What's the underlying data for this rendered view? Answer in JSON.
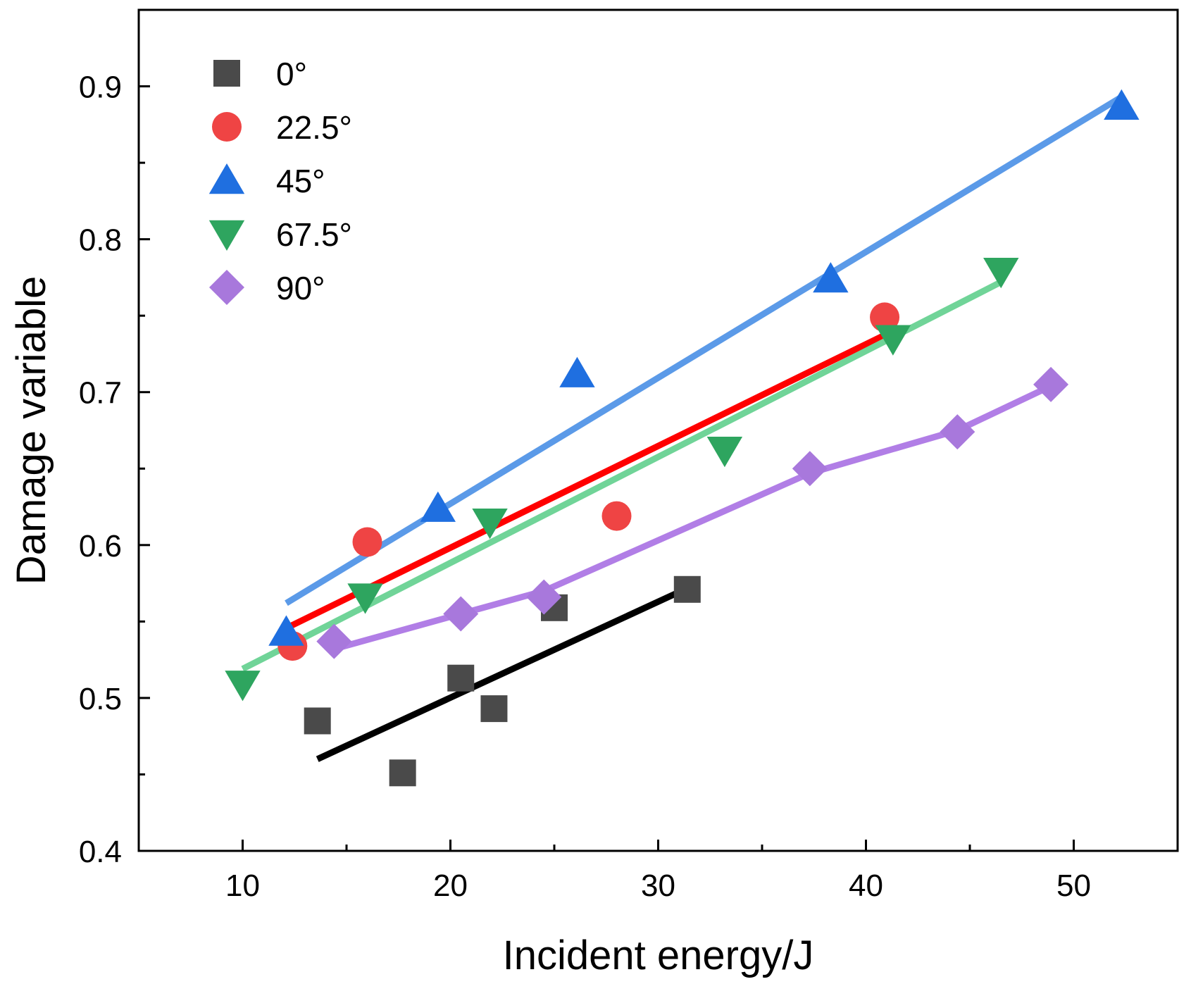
{
  "chart_data": {
    "type": "scatter",
    "title": "",
    "xlabel": "Incident energy/J",
    "ylabel": "Damage variable",
    "xlim": [
      5,
      55
    ],
    "ylim": [
      0.4,
      0.95
    ],
    "xticks": [
      10,
      20,
      30,
      40,
      50
    ],
    "xtick_labels": [
      "10",
      "20",
      "30",
      "40",
      "50"
    ],
    "yticks": [
      0.4,
      0.5,
      0.6,
      0.7,
      0.8,
      0.9
    ],
    "ytick_labels": [
      "0.4",
      "0.5",
      "0.6",
      "0.7",
      "0.8",
      "0.9"
    ],
    "x_minor_ticks": [
      15,
      25,
      35,
      45
    ],
    "y_minor_ticks": [
      0.45,
      0.55,
      0.65,
      0.75,
      0.85
    ],
    "grid": false,
    "legend_position": "top-left",
    "series": [
      {
        "name": "0°",
        "marker": "square",
        "color": "#4a4a4a",
        "line_color": "#000000",
        "points": [
          [
            13.6,
            0.485
          ],
          [
            17.7,
            0.451
          ],
          [
            20.5,
            0.513
          ],
          [
            22.1,
            0.493
          ],
          [
            25.0,
            0.559
          ],
          [
            31.4,
            0.571
          ]
        ],
        "fit": [
          [
            13.6,
            0.46
          ],
          [
            31.6,
            0.573
          ]
        ]
      },
      {
        "name": "22.5°",
        "marker": "circle",
        "color": "#ef4444",
        "line_color": "#ff0000",
        "points": [
          [
            12.4,
            0.534
          ],
          [
            16.0,
            0.602
          ],
          [
            28.0,
            0.619
          ],
          [
            40.9,
            0.749
          ]
        ],
        "fit": [
          [
            12.3,
            0.547
          ],
          [
            41.0,
            0.738
          ]
        ]
      },
      {
        "name": "45°",
        "marker": "triangle-up",
        "color": "#1f6fe0",
        "line_color": "#5b9ae8",
        "points": [
          [
            12.1,
            0.543
          ],
          [
            19.4,
            0.624
          ],
          [
            26.1,
            0.712
          ],
          [
            38.3,
            0.774
          ],
          [
            52.3,
            0.887
          ]
        ],
        "fit": [
          [
            12.1,
            0.562
          ],
          [
            52.3,
            0.893
          ]
        ]
      },
      {
        "name": "67.5°",
        "marker": "triangle-down",
        "color": "#2ea55f",
        "line_color": "#70d498",
        "points": [
          [
            10.0,
            0.509
          ],
          [
            15.9,
            0.566
          ],
          [
            21.9,
            0.615
          ],
          [
            33.2,
            0.662
          ],
          [
            41.3,
            0.735
          ],
          [
            46.5,
            0.779
          ]
        ],
        "fit": [
          [
            10.0,
            0.519
          ],
          [
            46.5,
            0.772
          ]
        ]
      },
      {
        "name": "90°",
        "marker": "diamond",
        "color": "#a878dc",
        "line_color": "#b17ee6",
        "points": [
          [
            14.4,
            0.537
          ],
          [
            20.5,
            0.555
          ],
          [
            24.5,
            0.566
          ],
          [
            37.3,
            0.65
          ],
          [
            44.4,
            0.674
          ],
          [
            48.9,
            0.705
          ]
        ],
        "fit": [
          [
            14.4,
            0.532
          ],
          [
            20.5,
            0.555
          ],
          [
            24.5,
            0.57
          ],
          [
            37.3,
            0.647
          ],
          [
            44.4,
            0.675
          ],
          [
            48.9,
            0.704
          ]
        ]
      }
    ]
  }
}
